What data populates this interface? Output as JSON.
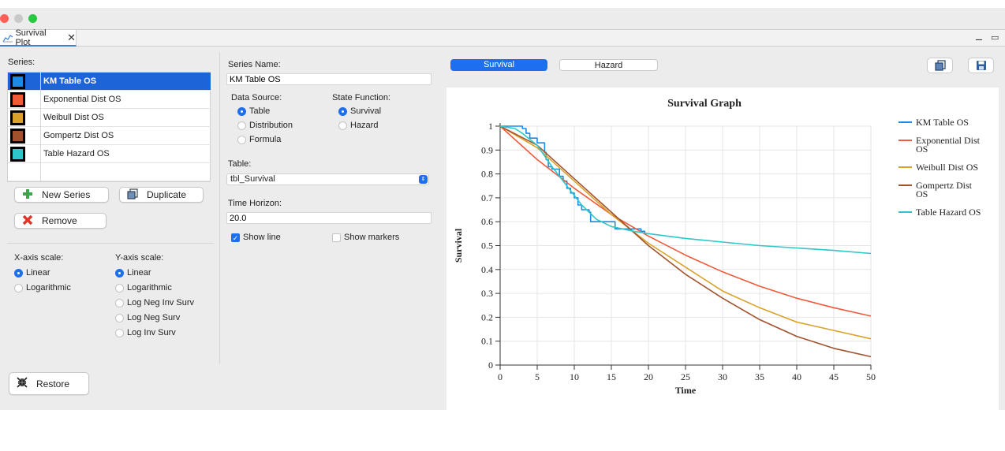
{
  "window": {
    "traffic_lights": [
      "#fe5f57",
      "#c9c9c9",
      "#28c840"
    ],
    "tab_icon": "chart-line-icon",
    "tab_label": "Survival Plot",
    "tab_close": "✕",
    "minimize_glyph": "⚊",
    "maximize_glyph": "▭"
  },
  "left": {
    "series_label": "Series:",
    "series": [
      {
        "name": "KM Table OS",
        "color": "#1f8ae3",
        "selected": true
      },
      {
        "name": "Exponential Dist OS",
        "color": "#ef5a3a",
        "selected": false
      },
      {
        "name": "Weibull Dist OS",
        "color": "#d9a22a",
        "selected": false
      },
      {
        "name": "Gompertz Dist OS",
        "color": "#a0522d",
        "selected": false
      },
      {
        "name": "Table Hazard OS",
        "color": "#2ec7c9",
        "selected": false
      }
    ],
    "new_series_label": "New Series",
    "duplicate_label": "Duplicate",
    "remove_label": "Remove",
    "restore_label": "Restore",
    "x_scale_label": "X-axis scale:",
    "y_scale_label": "Y-axis scale:",
    "x_scale_options": [
      {
        "label": "Linear",
        "on": true
      },
      {
        "label": "Logarithmic",
        "on": false
      }
    ],
    "y_scale_options": [
      {
        "label": "Linear",
        "on": true
      },
      {
        "label": "Logarithmic",
        "on": false
      },
      {
        "label": "Log Neg Inv Surv",
        "on": false
      },
      {
        "label": "Log Neg Surv",
        "on": false
      },
      {
        "label": "Log Inv Surv",
        "on": false
      }
    ]
  },
  "middle": {
    "series_name_label": "Series Name:",
    "series_name_value": "KM Table OS",
    "data_source_label": "Data Source:",
    "data_source_options": [
      {
        "label": "Table",
        "on": true
      },
      {
        "label": "Distribution",
        "on": false
      },
      {
        "label": "Formula",
        "on": false
      }
    ],
    "state_function_label": "State Function:",
    "state_function_options": [
      {
        "label": "Survival",
        "on": true
      },
      {
        "label": "Hazard",
        "on": false
      }
    ],
    "table_label": "Table:",
    "table_value": "tbl_Survival",
    "time_horizon_label": "Time Horizon:",
    "time_horizon_value": "20.0",
    "show_line_label": "Show line",
    "show_line_checked": true,
    "show_markers_label": "Show markers",
    "show_markers_checked": false
  },
  "right": {
    "survival_tab": "Survival",
    "hazard_tab": "Hazard",
    "copy_icon": "copy-icon",
    "save_icon": "save-icon"
  },
  "chart_data": {
    "type": "line",
    "title": "Survival Graph",
    "xlabel": "Time",
    "ylabel": "Survival",
    "xlim": [
      0,
      50
    ],
    "ylim": [
      0,
      1
    ],
    "xticks": [
      0,
      5,
      10,
      15,
      20,
      25,
      30,
      35,
      40,
      45,
      50
    ],
    "yticks": [
      0,
      0.1,
      0.2,
      0.3,
      0.4,
      0.5,
      0.6,
      0.7,
      0.8,
      0.9,
      1
    ],
    "grid": true,
    "legend_position": "right",
    "series": [
      {
        "name": "KM Table OS",
        "color": "#1f8ae3",
        "step": true,
        "points": [
          [
            0,
            1
          ],
          [
            2,
            1
          ],
          [
            3,
            0.99
          ],
          [
            3.5,
            0.97
          ],
          [
            4,
            0.95
          ],
          [
            5,
            0.93
          ],
          [
            6,
            0.89
          ],
          [
            6.2,
            0.86
          ],
          [
            6.5,
            0.83
          ],
          [
            7,
            0.82
          ],
          [
            7.5,
            0.82
          ],
          [
            8,
            0.79
          ],
          [
            8.5,
            0.77
          ],
          [
            9,
            0.74
          ],
          [
            9.5,
            0.72
          ],
          [
            10,
            0.7
          ],
          [
            10.5,
            0.67
          ],
          [
            11,
            0.65
          ],
          [
            12,
            0.64
          ],
          [
            12.2,
            0.6
          ],
          [
            14,
            0.6
          ],
          [
            15,
            0.6
          ],
          [
            15.5,
            0.57
          ],
          [
            17,
            0.57
          ],
          [
            19,
            0.57
          ],
          [
            19,
            0.56
          ],
          [
            19.5,
            0.55
          ]
        ]
      },
      {
        "name": "Exponential Dist OS",
        "color": "#ef5a3a",
        "points": [
          [
            0,
            1
          ],
          [
            5,
            0.86
          ],
          [
            10,
            0.74
          ],
          [
            15,
            0.63
          ],
          [
            20,
            0.54
          ],
          [
            25,
            0.46
          ],
          [
            30,
            0.39
          ],
          [
            35,
            0.33
          ],
          [
            40,
            0.28
          ],
          [
            45,
            0.24
          ],
          [
            50,
            0.205
          ]
        ]
      },
      {
        "name": "Weibull Dist OS",
        "color": "#d9a22a",
        "points": [
          [
            0,
            1
          ],
          [
            5,
            0.91
          ],
          [
            10,
            0.77
          ],
          [
            15,
            0.63
          ],
          [
            20,
            0.51
          ],
          [
            25,
            0.41
          ],
          [
            30,
            0.31
          ],
          [
            35,
            0.24
          ],
          [
            40,
            0.18
          ],
          [
            45,
            0.145
          ],
          [
            50,
            0.11
          ]
        ]
      },
      {
        "name": "Gompertz Dist OS",
        "color": "#a0522d",
        "points": [
          [
            0,
            1
          ],
          [
            5,
            0.92
          ],
          [
            10,
            0.78
          ],
          [
            15,
            0.64
          ],
          [
            20,
            0.5
          ],
          [
            25,
            0.38
          ],
          [
            30,
            0.28
          ],
          [
            35,
            0.19
          ],
          [
            40,
            0.12
          ],
          [
            45,
            0.07
          ],
          [
            50,
            0.035
          ]
        ]
      },
      {
        "name": "Table Hazard OS",
        "color": "#2ec7c9",
        "points": [
          [
            0,
            1
          ],
          [
            2,
            0.99
          ],
          [
            3,
            0.97
          ],
          [
            5,
            0.92
          ],
          [
            7,
            0.83
          ],
          [
            9,
            0.75
          ],
          [
            11,
            0.67
          ],
          [
            13,
            0.61
          ],
          [
            15,
            0.58
          ],
          [
            18,
            0.56
          ],
          [
            20,
            0.55
          ],
          [
            25,
            0.53
          ],
          [
            30,
            0.515
          ],
          [
            35,
            0.5
          ],
          [
            40,
            0.49
          ],
          [
            45,
            0.48
          ],
          [
            50,
            0.467
          ]
        ]
      }
    ]
  }
}
